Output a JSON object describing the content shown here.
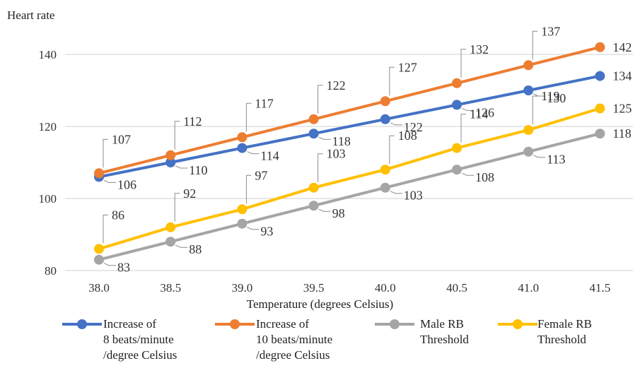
{
  "chart_data": {
    "type": "line",
    "title": "",
    "ylabel": "Heart rate",
    "xlabel": "Temperature (degrees Celsius)",
    "categories": [
      "38.0",
      "38.5",
      "39.0",
      "39.5",
      "40.0",
      "40.5",
      "41.0",
      "41.5"
    ],
    "ylim": [
      80,
      145
    ],
    "yticks": [
      80,
      100,
      120,
      140
    ],
    "grid": true,
    "legend_position": "bottom",
    "series": [
      {
        "name": "Increase of\n8 beats/minute\n/degree Celsius",
        "color": "#4472c4",
        "values": [
          106,
          110,
          114,
          118,
          122,
          126,
          130,
          134
        ]
      },
      {
        "name": "Increase of\n10 beats/minute\n/degree Celsius",
        "color": "#ed7d31",
        "values": [
          107,
          112,
          117,
          122,
          127,
          132,
          137,
          142
        ]
      },
      {
        "name": "Male RB\nThreshold",
        "color": "#a5a5a5",
        "values": [
          83,
          88,
          93,
          98,
          103,
          108,
          113,
          118
        ]
      },
      {
        "name": "Female RB\nThreshold",
        "color": "#ffc000",
        "values": [
          86,
          92,
          97,
          103,
          108,
          114,
          119,
          125
        ]
      }
    ]
  }
}
